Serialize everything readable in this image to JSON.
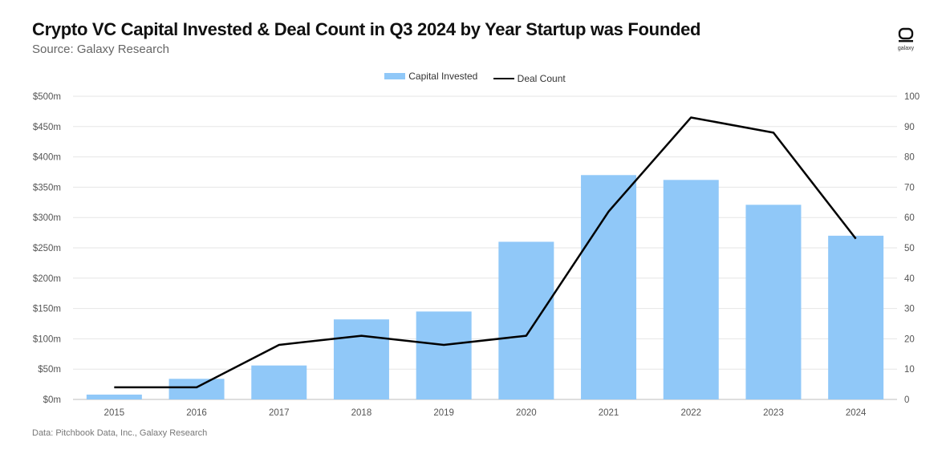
{
  "header": {
    "title": "Crypto VC Capital Invested & Deal Count in Q3 2024 by Year Startup was Founded",
    "subtitle": "Source: Galaxy Research"
  },
  "logo": {
    "text": "galaxy",
    "icon": "galaxy-logo-icon"
  },
  "footer": {
    "text": "Data: Pitchbook Data, Inc., Galaxy Research"
  },
  "colors": {
    "bar": "#90c8f8",
    "line": "#000000",
    "grid": "#e6e6e6"
  },
  "chart_data": {
    "type": "bar",
    "categories": [
      "2015",
      "2016",
      "2017",
      "2018",
      "2019",
      "2020",
      "2021",
      "2022",
      "2023",
      "2024"
    ],
    "series": [
      {
        "name": "Capital Invested",
        "type": "bar",
        "axis": "left",
        "values": [
          8,
          34,
          56,
          132,
          145,
          260,
          370,
          362,
          321,
          270
        ]
      },
      {
        "name": "Deal Count",
        "type": "line",
        "axis": "right",
        "values": [
          4,
          4,
          18,
          21,
          18,
          21,
          62,
          93,
          88,
          53
        ]
      }
    ],
    "y_left": {
      "min": 0,
      "max": 500,
      "ticks": [
        "$0m",
        "$50m",
        "$100m",
        "$150m",
        "$200m",
        "$250m",
        "$300m",
        "$350m",
        "$400m",
        "$450m",
        "$500m"
      ]
    },
    "y_right": {
      "min": 0,
      "max": 100,
      "ticks": [
        "0",
        "10",
        "20",
        "30",
        "40",
        "50",
        "60",
        "70",
        "80",
        "90",
        "100"
      ]
    },
    "grid": true,
    "legend_position": "top-center"
  }
}
